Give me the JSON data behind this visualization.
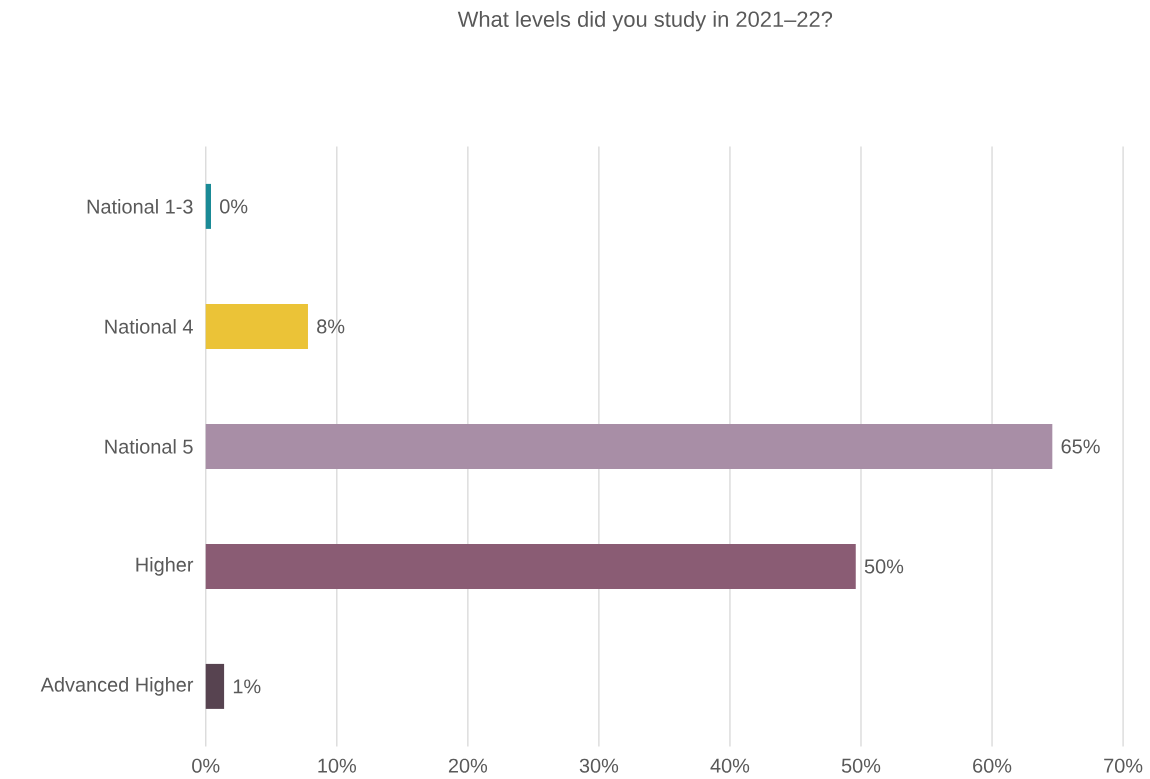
{
  "chart_data": {
    "type": "bar",
    "orientation": "horizontal",
    "title": "What levels did you study in 2021–22?",
    "categories": [
      "National 1-3",
      "National 4",
      "National 5",
      "Higher",
      "Advanced Higher"
    ],
    "values": [
      0.4,
      7.8,
      64.6,
      49.6,
      1.4
    ],
    "value_labels": [
      "0%",
      "8%",
      "65%",
      "50%",
      "1%"
    ],
    "colors": [
      "#1a8a96",
      "#ebc337",
      "#a88ea6",
      "#8a5c74",
      "#574350"
    ],
    "xlim": [
      0,
      70
    ],
    "xticks": [
      {
        "value": 0,
        "label": "0%"
      },
      {
        "value": 10,
        "label": "10%"
      },
      {
        "value": 20,
        "label": "20%"
      },
      {
        "value": 30,
        "label": "30%"
      },
      {
        "value": 40,
        "label": "40%"
      },
      {
        "value": 50,
        "label": "50%"
      },
      {
        "value": 60,
        "label": "60%"
      },
      {
        "value": 70,
        "label": "70%"
      }
    ],
    "grid": "x"
  }
}
